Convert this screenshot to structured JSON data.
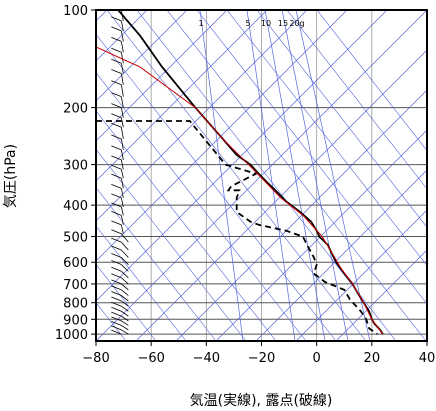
{
  "chart_data": {
    "type": "line",
    "title": "",
    "xlabel": "気温(実線), 露点(破線)",
    "ylabel": "気圧(hPa)",
    "xlim": [
      -80,
      40
    ],
    "ylim": [
      100,
      1050
    ],
    "y_scale": "log",
    "x_ticks": [
      -80,
      -60,
      -40,
      -20,
      0,
      20,
      40
    ],
    "y_ticks": [
      100,
      200,
      300,
      400,
      500,
      600,
      700,
      800,
      900,
      1000
    ],
    "mixing_ratio_labels": [
      "1",
      "5",
      "10",
      "15",
      "20g"
    ],
    "grid": true,
    "series": [
      {
        "role": "temperature",
        "style": "solid",
        "color": "#000000",
        "points": [
          [
            -72,
            100
          ],
          [
            -64,
            120
          ],
          [
            -56,
            150
          ],
          [
            -44,
            200
          ],
          [
            -34,
            250
          ],
          [
            -29,
            280
          ],
          [
            -24,
            300
          ],
          [
            -21,
            320
          ],
          [
            -18,
            340
          ],
          [
            -15,
            360
          ],
          [
            -11,
            390
          ],
          [
            -6,
            420
          ],
          [
            -2,
            450
          ],
          [
            0,
            480
          ],
          [
            1,
            500
          ],
          [
            4,
            530
          ],
          [
            7,
            600
          ],
          [
            10,
            650
          ],
          [
            13,
            700
          ],
          [
            15,
            750
          ],
          [
            17,
            800
          ],
          [
            19,
            850
          ],
          [
            20,
            900
          ],
          [
            21,
            930
          ],
          [
            23,
            970
          ],
          [
            24,
            1000
          ]
        ]
      },
      {
        "role": "dewpoint",
        "style": "dashed",
        "color": "#000000",
        "points": [
          [
            -80,
            220
          ],
          [
            -46,
            220
          ],
          [
            -33,
            300
          ],
          [
            -22,
            320
          ],
          [
            -31,
            350
          ],
          [
            -32,
            360
          ],
          [
            -28,
            360
          ],
          [
            -29,
            380
          ],
          [
            -29,
            420
          ],
          [
            -24,
            450
          ],
          [
            -21,
            460
          ],
          [
            -11,
            480
          ],
          [
            -5,
            500
          ],
          [
            -3,
            540
          ],
          [
            -1,
            580
          ],
          [
            0,
            610
          ],
          [
            -1,
            650
          ],
          [
            3,
            690
          ],
          [
            10,
            730
          ],
          [
            12,
            780
          ],
          [
            16,
            850
          ],
          [
            18,
            900
          ],
          [
            19,
            960
          ],
          [
            22,
            1000
          ]
        ]
      },
      {
        "role": "parcel",
        "style": "solid",
        "color": "#cc0000",
        "points": [
          [
            -80,
            130
          ],
          [
            -64,
            150
          ],
          [
            -44,
            200
          ],
          [
            -34,
            250
          ],
          [
            -23,
            310
          ],
          [
            -13,
            380
          ],
          [
            -5,
            430
          ],
          [
            2,
            500
          ],
          [
            6,
            570
          ],
          [
            9,
            630
          ],
          [
            13,
            700
          ],
          [
            17,
            800
          ],
          [
            20,
            900
          ],
          [
            24,
            1000
          ]
        ]
      }
    ],
    "wind_barbs": {
      "axis_x": -69,
      "levels_hPa": [
        100,
        108,
        116,
        125,
        135,
        146,
        157,
        170,
        185,
        200,
        215,
        230,
        250,
        270,
        290,
        310,
        330,
        355,
        380,
        405,
        430,
        460,
        490,
        520,
        550,
        580,
        610,
        640,
        670,
        700,
        730,
        760,
        790,
        820,
        850,
        880,
        910,
        940,
        970,
        1000
      ]
    }
  }
}
